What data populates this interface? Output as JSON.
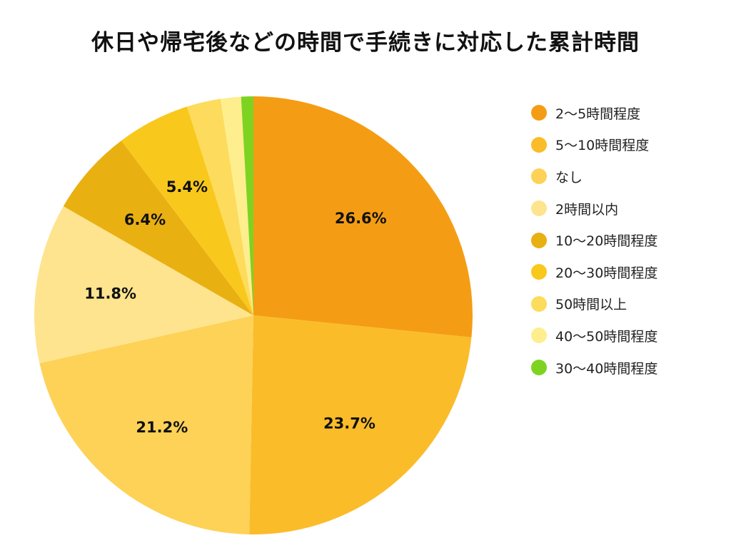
{
  "chart_data": {
    "type": "pie",
    "title": "休日や帰宅後などの時間で手続きに対応した累計時間",
    "legend_position": "right",
    "start": "top, clockwise",
    "slices": [
      {
        "label": "2〜5時間程度",
        "value": 26.6,
        "data_label": "26.6%",
        "color": "#F49D14"
      },
      {
        "label": "5〜10時間程度",
        "value": 23.7,
        "data_label": "23.7%",
        "color": "#FBBC2A"
      },
      {
        "label": "なし",
        "value": 21.2,
        "data_label": "21.2%",
        "color": "#FDD257"
      },
      {
        "label": "2時間以内",
        "value": 11.8,
        "data_label": "11.8%",
        "color": "#FEE48E"
      },
      {
        "label": "10〜20時間程度",
        "value": 6.4,
        "data_label": "6.4%",
        "color": "#E9B012"
      },
      {
        "label": "20〜30時間程度",
        "value": 5.4,
        "data_label": "5.4%",
        "color": "#F9C81C"
      },
      {
        "label": "50時間以上",
        "value": 2.5,
        "data_label": "",
        "color": "#FDDB5C"
      },
      {
        "label": "40〜50時間程度",
        "value": 1.5,
        "data_label": "",
        "color": "#FEEE8E"
      },
      {
        "label": "30〜40時間程度",
        "value": 0.9,
        "data_label": "",
        "color": "#7ED321"
      }
    ]
  }
}
